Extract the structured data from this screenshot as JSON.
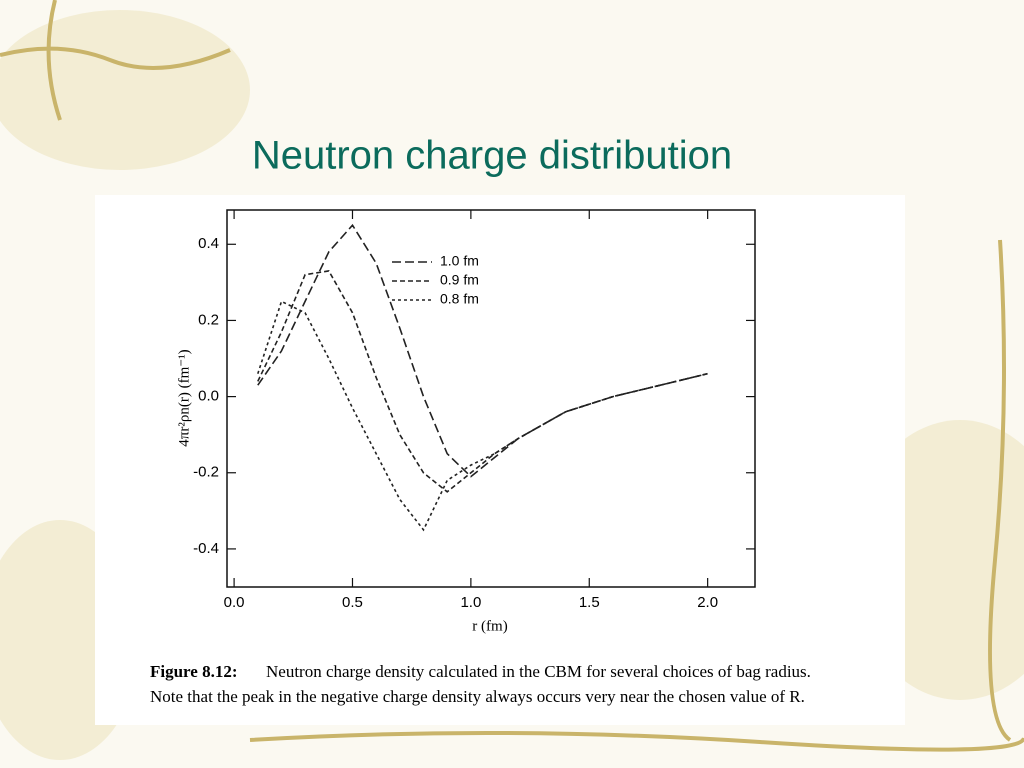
{
  "slide_title": "Neutron charge distribution",
  "caption_label": "Figure 8.12:",
  "caption_lines": [
    "Neutron charge density calculated in the CBM for several choices of bag radius.",
    "Note that the peak in the negative charge density always occurs very near the chosen value of R."
  ],
  "chart_data": {
    "type": "line",
    "xlabel": "r (fm)",
    "ylabel": "4πr²ρn(r) (fm⁻¹)",
    "x": [
      0.1,
      0.2,
      0.3,
      0.4,
      0.5,
      0.6,
      0.7,
      0.8,
      0.9,
      1.0,
      1.1,
      1.2,
      1.4,
      1.6,
      1.8,
      2.0
    ],
    "series": [
      {
        "name": "1.0 fm",
        "color": "#222222",
        "dash": "9,4",
        "values": [
          0.03,
          0.12,
          0.25,
          0.38,
          0.45,
          0.35,
          0.18,
          0.0,
          -0.15,
          -0.21,
          -0.16,
          -0.11,
          -0.04,
          0.0,
          0.03,
          0.06
        ]
      },
      {
        "name": "0.9 fm",
        "color": "#222222",
        "dash": "5,3",
        "values": [
          0.04,
          0.17,
          0.32,
          0.33,
          0.22,
          0.05,
          -0.1,
          -0.2,
          -0.25,
          -0.2,
          -0.15,
          -0.11,
          -0.04,
          0.0,
          0.03,
          0.06
        ]
      },
      {
        "name": "0.8 fm",
        "color": "#222222",
        "dash": "3,3",
        "values": [
          0.06,
          0.25,
          0.22,
          0.1,
          -0.03,
          -0.15,
          -0.27,
          -0.35,
          -0.22,
          -0.18,
          -0.15,
          -0.11,
          -0.04,
          0.0,
          0.03,
          0.06
        ]
      }
    ],
    "xlim": [
      -0.03,
      2.2
    ],
    "ylim": [
      -0.5,
      0.49
    ],
    "xticks": [
      {
        "value": 0,
        "label": "0.0"
      },
      0.5,
      {
        "value": 1,
        "label": "1.0"
      },
      1.5,
      {
        "value": 2,
        "label": "2.0"
      }
    ],
    "yticks": [
      0.4,
      0.2,
      {
        "value": 0,
        "label": "0.0"
      },
      -0.2,
      -0.4
    ],
    "legend": "upper center",
    "grid": false
  }
}
